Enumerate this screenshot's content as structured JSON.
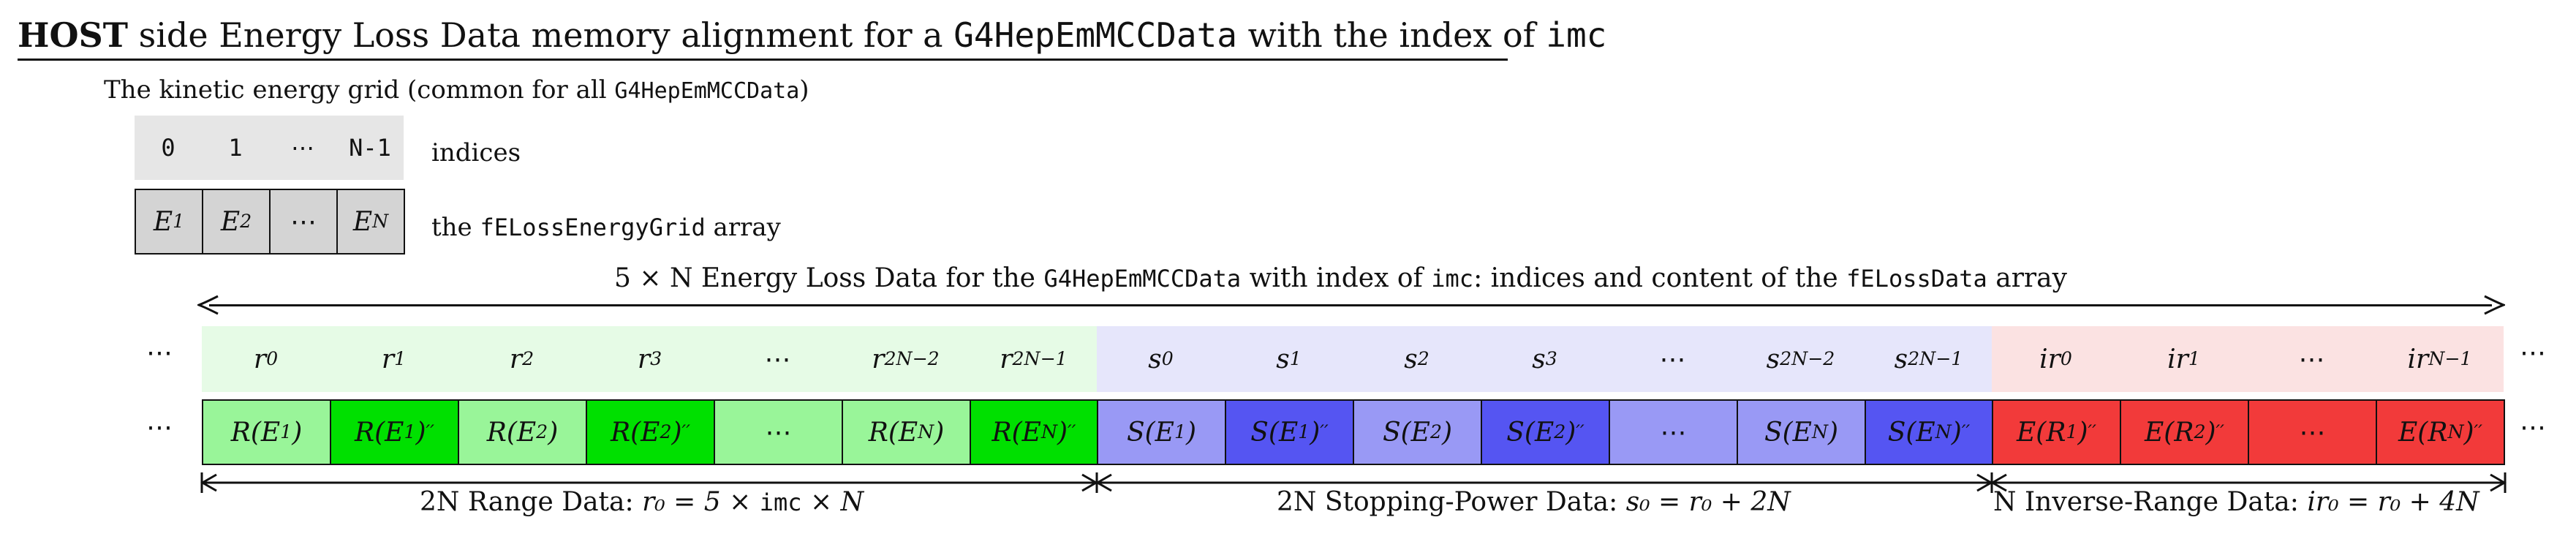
{
  "title": {
    "bold": "HOST",
    "part1": " side Energy Loss Data memory alignment for a ",
    "code1": "G4HepEmMCCData",
    "part2": " with the index of ",
    "code2": "imc"
  },
  "kinetic": {
    "title": "The kinetic energy grid (common for all ",
    "title_code": "G4HepEmMCCData",
    "title_end": ")",
    "indices": [
      "0",
      "1",
      "⋯",
      "N-1"
    ],
    "indices_label": "indices",
    "array_label_pre": "the ",
    "array_label_code": "fELossEnergyGrid",
    "array_label_post": " array"
  },
  "main_caption": {
    "pre": "5 × N Energy Loss Data for the ",
    "code1": "G4HepEmMCCData",
    "mid": " with index of ",
    "code2": "imc",
    "mid2": ": indices and content of the ",
    "code3": "fELossData",
    "post": " array"
  },
  "sections": [
    {
      "label_pre": "2N Range Data: ",
      "label_math": "r₀ = 5 × ",
      "label_code": "imc",
      "label_post": " × N"
    },
    {
      "label_pre": "2N Stopping-Power Data: ",
      "label_math": "s₀ = r₀ + 2N"
    },
    {
      "label_pre": "N Inverse-Range Data: ",
      "label_math": "ir₀ = r₀ + 4N"
    }
  ],
  "colors": {
    "range_light": "#e6fbe6",
    "range_cell": "#99f599",
    "range_cell_dark": "#00e000",
    "sp_light": "#e6e6fb",
    "sp_cell": "#9999f5",
    "sp_cell_dark": "#5555f2",
    "ir_light": "#fbe2e2",
    "ir_cell": "#f23a3a",
    "grid_index_bg": "#e6e6e6",
    "grid_cell_bg": "#d4d4d4"
  }
}
